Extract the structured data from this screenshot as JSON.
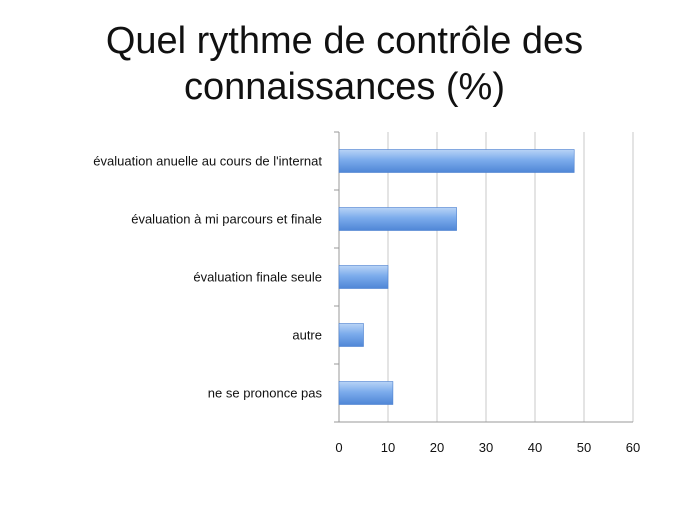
{
  "slide": {
    "title_line1": "Quel rythme de contrôle des",
    "title_line2": "connaissances (%)"
  },
  "chart_data": {
    "type": "bar",
    "orientation": "horizontal",
    "title": "Quel rythme de contrôle des connaissances (%)",
    "categories": [
      "évaluation anuelle au cours de l'internat",
      "évaluation à mi parcours et finale",
      "évaluation finale seule",
      "autre",
      "ne se prononce pas"
    ],
    "values": [
      48,
      24,
      10,
      5,
      11
    ],
    "xlim": [
      0,
      60
    ],
    "xticks": [
      "0",
      "10",
      "20",
      "30",
      "40",
      "50",
      "60"
    ],
    "grid": true,
    "bar_color": "#6fa3e8"
  }
}
